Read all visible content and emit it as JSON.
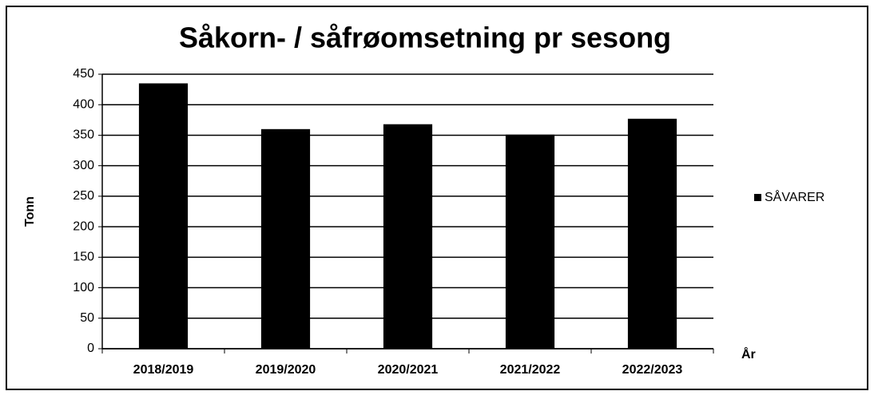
{
  "chart_data": {
    "type": "bar",
    "title": "Såkorn- / såfrøomsetning pr sesong",
    "x_label": "År",
    "y_label": "Tonn",
    "categories": [
      "2018/2019",
      "2019/2020",
      "2020/2021",
      "2021/2022",
      "2022/2023"
    ],
    "series": [
      {
        "name": "SÅVARER",
        "color": "#000000",
        "values": [
          435,
          360,
          368,
          351,
          377
        ]
      }
    ],
    "ylim": [
      0,
      450
    ],
    "yticks": [
      0,
      50,
      100,
      150,
      200,
      250,
      300,
      350,
      400,
      450
    ],
    "grid": true,
    "legend": "right"
  }
}
